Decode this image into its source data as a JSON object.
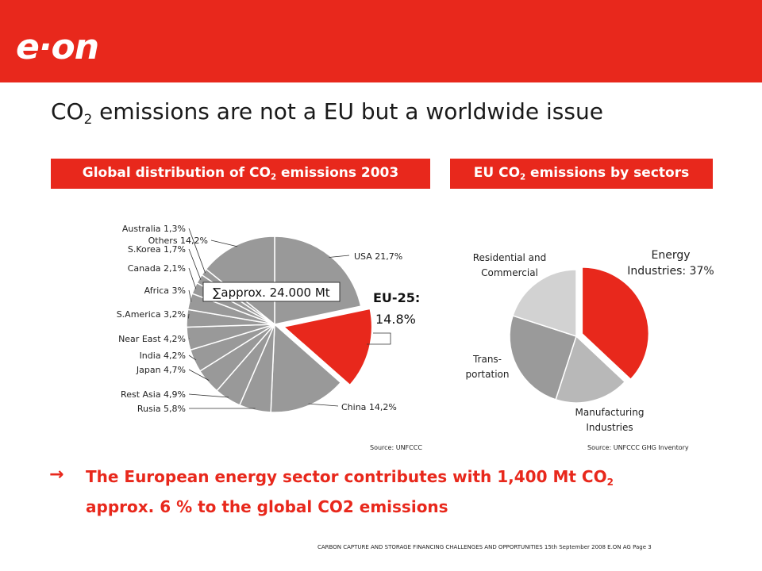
{
  "header": {
    "logo_text": "e·on",
    "color": "#e8281c"
  },
  "title": {
    "prefix": "CO",
    "sub": "2",
    "rest": " emissions are not a EU but a worldwide issue"
  },
  "left_banner": {
    "prefix": "Global distribution of CO",
    "sub": "2",
    "rest": " emissions  2003"
  },
  "right_banner": {
    "prefix": "EU CO",
    "sub": "2",
    "rest": " emissions  by sectors"
  },
  "left_source": "Source: UNFCCC",
  "right_source": "Source: UNFCCC GHG Inventory",
  "takeaway": {
    "arrow": "→",
    "line1_prefix": "The European energy sector contributes with 1,400 Mt CO",
    "line1_sub": "2",
    "line2": "approx. 6 % to the global CO2 emissions"
  },
  "footer": "CARBON CAPTURE AND STORAGE FINANCING CHALLENGES AND OPPORTUNITIES  15th September 2008  E.ON AG     Page  3",
  "chart_data": [
    {
      "type": "pie",
      "title": "Global distribution of CO2 emissions 2003",
      "total_label": "∑approx. 24.000 Mt",
      "highlight_label": [
        "EU-25:",
        "14.8%"
      ],
      "slices": [
        {
          "label": "USA 21,7%",
          "value": 21.7
        },
        {
          "label": "EU-25",
          "value": 14.8,
          "highlight": true
        },
        {
          "label": "China 14,2%",
          "value": 14.2
        },
        {
          "label": "Rusia 5,8%",
          "value": 5.8
        },
        {
          "label": "Rest Asia 4,9%",
          "value": 4.9
        },
        {
          "label": "Japan 4,7%",
          "value": 4.7
        },
        {
          "label": "India 4,2%",
          "value": 4.2
        },
        {
          "label": "Near East 4,2%",
          "value": 4.2
        },
        {
          "label": "S.America 3,2%",
          "value": 3.2
        },
        {
          "label": "Africa 3%",
          "value": 3.0
        },
        {
          "label": "Canada 2,1%",
          "value": 2.1
        },
        {
          "label": "S.Korea 1,7%",
          "value": 1.7
        },
        {
          "label": "Australia 1,3%",
          "value": 1.3
        },
        {
          "label": "Others 14,2%",
          "value": 14.2
        }
      ],
      "colors": {
        "slice": "#999999",
        "highlight": "#e8281c"
      }
    },
    {
      "type": "pie",
      "title": "EU CO2 emissions by sectors",
      "slices": [
        {
          "label": [
            "Energy",
            "Industries: 37%"
          ],
          "value": 37,
          "color": "#e8281c"
        },
        {
          "label": [
            "Manufacturing",
            "Industries"
          ],
          "value": 18,
          "color": "#b8b8b8"
        },
        {
          "label": [
            "Trans-",
            "portation"
          ],
          "value": 25,
          "color": "#9a9a9a"
        },
        {
          "label": [
            "Residential and",
            "Commercial"
          ],
          "value": 20,
          "color": "#d2d2d2"
        }
      ]
    }
  ]
}
